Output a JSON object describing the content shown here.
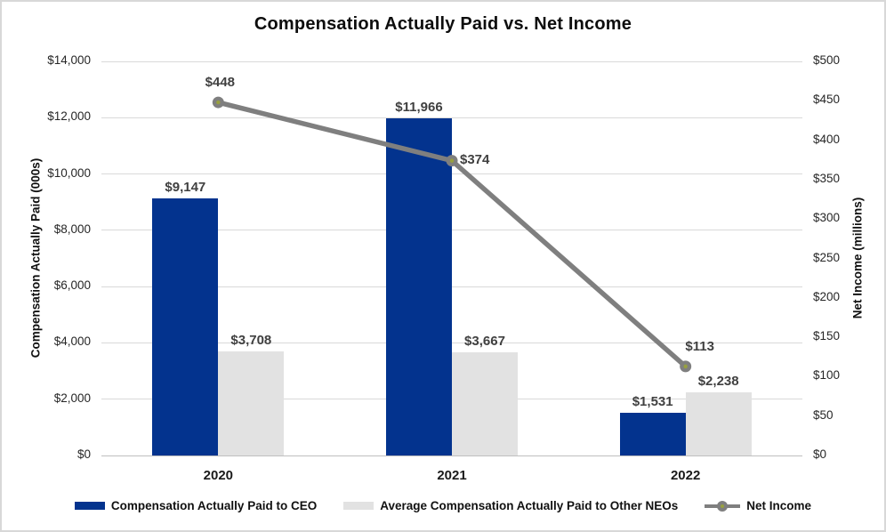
{
  "chart_data": {
    "type": "combo (bar + line)",
    "title": "Compensation Actually Paid vs. Net Income",
    "categories": [
      "2020",
      "2021",
      "2022"
    ],
    "bar_series": [
      {
        "name": "Compensation Actually Paid to CEO",
        "color": "#03338e",
        "axis": "left",
        "values": [
          9147,
          11966,
          1531
        ],
        "labels": [
          "$9,147",
          "$11,966",
          "$1,531"
        ]
      },
      {
        "name": "Average Compensation Actually Paid to Other NEOs",
        "color": "#e2e2e2",
        "axis": "left",
        "values": [
          3708,
          3667,
          2238
        ],
        "labels": [
          "$3,708",
          "$3,667",
          "$2,238"
        ]
      }
    ],
    "line_series": {
      "name": "Net Income",
      "color": "#7f7f7f",
      "marker_dot_color": "#98a03f",
      "axis": "right",
      "values": [
        448,
        374,
        113
      ],
      "labels": [
        "$448",
        "$374",
        "$113"
      ],
      "label_positions": [
        "above",
        "right",
        "above"
      ]
    },
    "left_axis": {
      "title": "Compensation Actually Paid (000s)",
      "min": 0,
      "max": 14000,
      "step": 2000,
      "tick_labels": [
        "$0",
        "$2,000",
        "$4,000",
        "$6,000",
        "$8,000",
        "$10,000",
        "$12,000",
        "$14,000"
      ]
    },
    "right_axis": {
      "title": "Net Income (millions)",
      "min": 0,
      "max": 500,
      "step": 50,
      "tick_labels": [
        "$0",
        "$50",
        "$100",
        "$150",
        "$200",
        "$250",
        "$300",
        "$350",
        "$400",
        "$450",
        "$500"
      ]
    },
    "x_axis": {
      "tick_labels": [
        "2020",
        "2021",
        "2022"
      ]
    },
    "grid": "horizontal gridlines at left-axis ticks",
    "legend_position": "bottom",
    "colors": {
      "gridline": "#d9d9d9",
      "baseline": "#bfbfbf",
      "data_label": "#404040",
      "frame_border": "#d8d8d8"
    }
  }
}
